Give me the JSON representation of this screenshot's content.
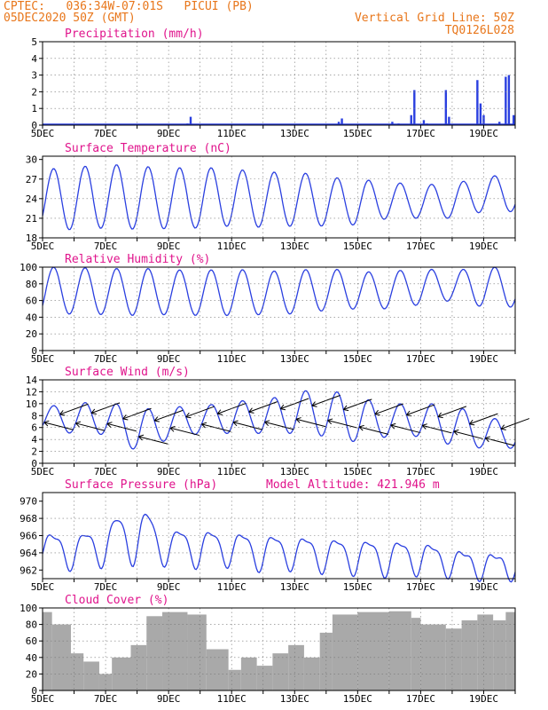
{
  "header": {
    "line1": "CPTEC:   036:34W-07:01S   PICUI (PB)",
    "line2": "05DEC2020 50Z (GMT)",
    "grid_note": "Vertical Grid Line: 50Z",
    "code": "TQ0126L028"
  },
  "colors": {
    "line": "#2a3fe0",
    "title": "#e0148c",
    "header": "#e8761a",
    "cloud": "#a9a9a9",
    "frame": "#000000"
  },
  "x_ticks": [
    "5DEC",
    "7DEC",
    "9DEC",
    "11DEC",
    "13DEC",
    "15DEC",
    "17DEC",
    "19DEC"
  ],
  "chart_data": [
    {
      "type": "bar",
      "title": "Precipitation (mm/h)",
      "ylim": [
        0,
        5
      ],
      "yticks": [
        "0",
        "1",
        "2",
        "3",
        "4",
        "5"
      ],
      "x_range_days": [
        5,
        20
      ],
      "points": [
        [
          9.6,
          0.1
        ],
        [
          9.7,
          0.5
        ],
        [
          14.4,
          0.2
        ],
        [
          14.5,
          0.4
        ],
        [
          16.1,
          0.2
        ],
        [
          16.3,
          0.1
        ],
        [
          16.7,
          0.6
        ],
        [
          16.8,
          2.1
        ],
        [
          17.1,
          0.3
        ],
        [
          17.2,
          0.1
        ],
        [
          17.8,
          2.1
        ],
        [
          17.9,
          0.5
        ],
        [
          18.8,
          2.7
        ],
        [
          18.9,
          1.3
        ],
        [
          19.0,
          0.6
        ],
        [
          19.5,
          0.2
        ],
        [
          19.7,
          2.9
        ],
        [
          19.8,
          3.0
        ],
        [
          19.95,
          0.6
        ]
      ]
    },
    {
      "type": "line",
      "title": "Surface Temperature (nC)",
      "ylim": [
        18,
        30.5
      ],
      "yticks": [
        "18",
        "21",
        "24",
        "27",
        "30"
      ],
      "x_range_days": [
        5,
        20
      ],
      "daily_min": [
        19.5,
        19.2,
        19.5,
        19.3,
        19.4,
        19.5,
        19.8,
        19.6,
        19.8,
        19.8,
        20.0,
        21.0,
        21.0,
        21.0,
        22.0
      ],
      "daily_max": [
        28.5,
        28.8,
        29.3,
        29.0,
        28.7,
        28.8,
        28.6,
        28.0,
        28.2,
        27.3,
        27.0,
        26.5,
        26.2,
        26.2,
        27.5
      ]
    },
    {
      "type": "line",
      "title": "Relative Humidity (%)",
      "ylim": [
        0,
        100
      ],
      "yticks": [
        "0",
        "20",
        "40",
        "60",
        "80",
        "100"
      ],
      "x_range_days": [
        5,
        20
      ],
      "daily_min": [
        42,
        44,
        43,
        42,
        43,
        42,
        42,
        43,
        44,
        48,
        50,
        50,
        55,
        60,
        52
      ],
      "daily_max": [
        100,
        100,
        98,
        99,
        97,
        96,
        98,
        95,
        96,
        99,
        94,
        95,
        98,
        96,
        100
      ]
    },
    {
      "type": "line",
      "title": "Surface Wind (m/s)",
      "ylim": [
        0,
        14
      ],
      "yticks": [
        "0",
        "2",
        "4",
        "6",
        "8",
        "10",
        "12",
        "14"
      ],
      "x_range_days": [
        5,
        20
      ],
      "daily_min": [
        5.5,
        5.0,
        4.8,
        2.0,
        4.0,
        5.0,
        5.0,
        5.0,
        5.0,
        4.5,
        3.5,
        4.5,
        4.5,
        3.0,
        2.5
      ],
      "daily_max": [
        9.5,
        10.0,
        10.5,
        9.0,
        9.5,
        9.5,
        10.5,
        10.5,
        12.0,
        12.5,
        11.0,
        10.0,
        10.0,
        10.0,
        7.5
      ]
    },
    {
      "type": "line",
      "title": "Surface Pressure (hPa)",
      "annotation": "Model Altitude: 421.946 m",
      "ylim": [
        961,
        971
      ],
      "yticks": [
        "962",
        "964",
        "966",
        "968",
        "970"
      ],
      "x_range_days": [
        5,
        20
      ],
      "daily_min": [
        963.2,
        962.3,
        962.8,
        963.0,
        962.9,
        962.6,
        962.8,
        962.2,
        962.4,
        962.0,
        961.8,
        961.6,
        961.8,
        961.5,
        961.2
      ],
      "daily_max": [
        966.5,
        966.0,
        967.5,
        969.8,
        966.8,
        966.8,
        966.5,
        966.2,
        966.0,
        965.8,
        965.6,
        965.5,
        965.4,
        964.5,
        964.0
      ]
    },
    {
      "type": "bar",
      "title": "Cloud Cover (%)",
      "ylim": [
        0,
        100
      ],
      "yticks": [
        "0",
        "20",
        "40",
        "60",
        "80",
        "100"
      ],
      "x_range_days": [
        5,
        20
      ],
      "segments": [
        [
          5.0,
          5.3,
          95
        ],
        [
          5.3,
          5.9,
          80
        ],
        [
          5.9,
          6.3,
          45
        ],
        [
          6.3,
          6.8,
          35
        ],
        [
          6.8,
          7.2,
          20
        ],
        [
          7.2,
          7.8,
          40
        ],
        [
          7.8,
          8.3,
          55
        ],
        [
          8.3,
          8.8,
          90
        ],
        [
          8.8,
          9.6,
          95
        ],
        [
          9.6,
          10.2,
          92
        ],
        [
          10.2,
          10.9,
          50
        ],
        [
          10.9,
          11.3,
          25
        ],
        [
          11.3,
          11.8,
          40
        ],
        [
          11.8,
          12.3,
          30
        ],
        [
          12.3,
          12.8,
          45
        ],
        [
          12.8,
          13.3,
          55
        ],
        [
          13.3,
          13.8,
          40
        ],
        [
          13.8,
          14.2,
          70
        ],
        [
          14.2,
          15.0,
          92
        ],
        [
          15.0,
          16.0,
          95
        ],
        [
          16.0,
          16.7,
          96
        ],
        [
          16.7,
          17.0,
          88
        ],
        [
          17.0,
          17.8,
          80
        ],
        [
          17.8,
          18.3,
          75
        ],
        [
          18.3,
          18.8,
          85
        ],
        [
          18.8,
          19.3,
          92
        ],
        [
          19.3,
          19.7,
          85
        ],
        [
          19.7,
          20.0,
          95
        ]
      ]
    }
  ]
}
